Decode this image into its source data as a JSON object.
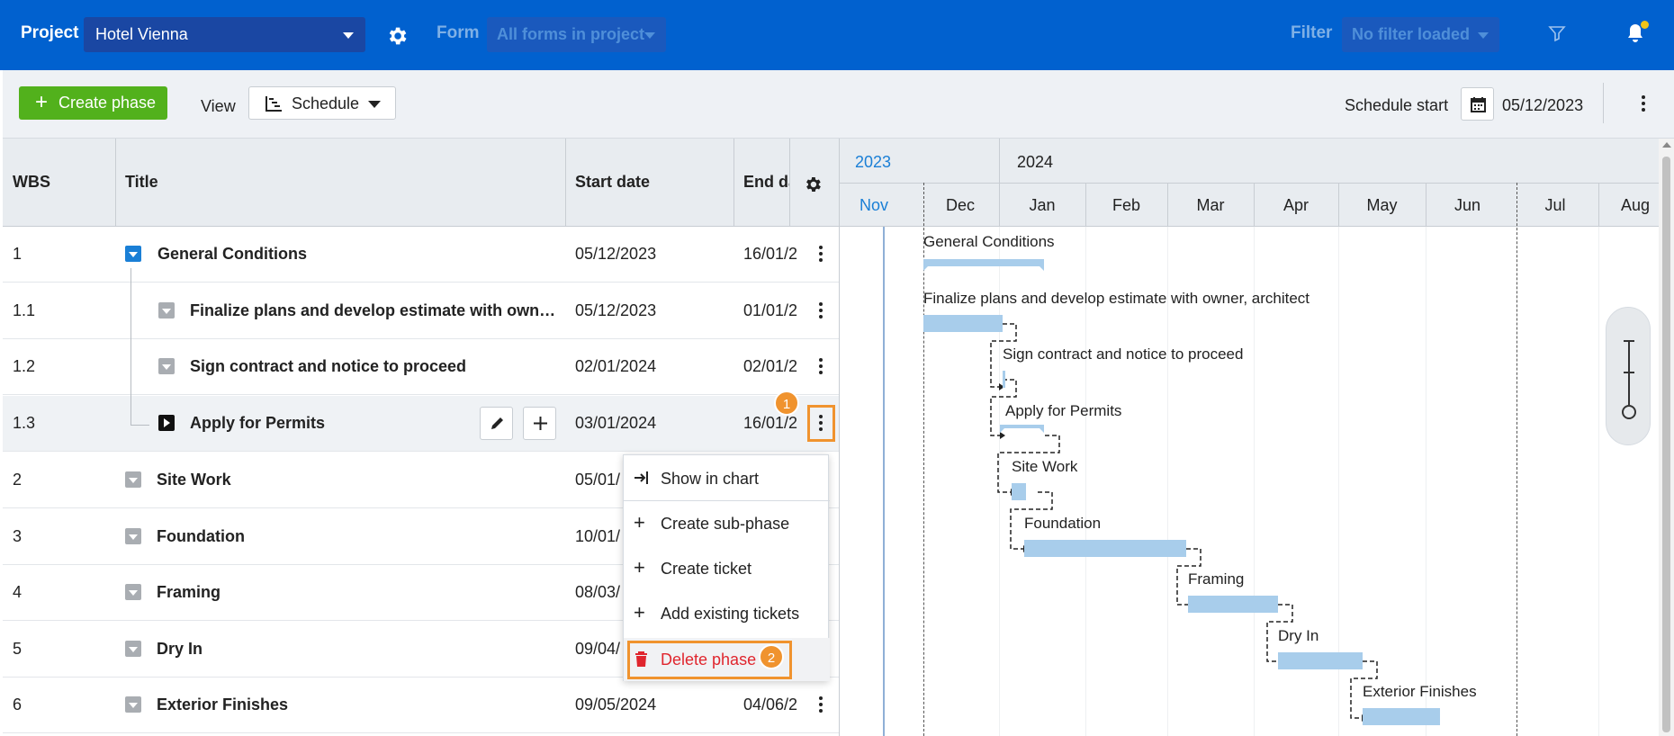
{
  "topbar": {
    "project_label": "Project",
    "project_value": "Hotel Vienna",
    "form_label": "Form",
    "form_value": "All forms in project",
    "filter_label": "Filter",
    "filter_value": "No filter loaded"
  },
  "toolbar": {
    "create_phase": "Create phase",
    "view_label": "View",
    "view_value": "Schedule",
    "schedule_start_label": "Schedule start",
    "schedule_start_value": "05/12/2023"
  },
  "table": {
    "columns": [
      "WBS",
      "Title",
      "Start date",
      "End da"
    ],
    "rows": [
      {
        "wbs": "1",
        "title": "General Conditions",
        "start": "05/12/2023",
        "end": "16/01/2"
      },
      {
        "wbs": "1.1",
        "title": "Finalize plans and develop estimate with owner, arc...",
        "start": "05/12/2023",
        "end": "01/01/2"
      },
      {
        "wbs": "1.2",
        "title": "Sign contract and notice to proceed",
        "start": "02/01/2024",
        "end": "02/01/2"
      },
      {
        "wbs": "1.3",
        "title": "Apply for Permits",
        "start": "03/01/2024",
        "end": "16/01/2"
      },
      {
        "wbs": "2",
        "title": "Site Work",
        "start": "05/01/",
        "end": ""
      },
      {
        "wbs": "3",
        "title": "Foundation",
        "start": "10/01/",
        "end": ""
      },
      {
        "wbs": "4",
        "title": "Framing",
        "start": "08/03/",
        "end": ""
      },
      {
        "wbs": "5",
        "title": "Dry In",
        "start": "09/04/",
        "end": ""
      },
      {
        "wbs": "6",
        "title": "Exterior Finishes",
        "start": "09/05/2024",
        "end": "04/06/2"
      }
    ]
  },
  "context_menu": {
    "items": [
      "Show in chart",
      "Create sub-phase",
      "Create ticket",
      "Add existing tickets",
      "Delete phase"
    ]
  },
  "badges": {
    "one": "1",
    "two": "2"
  },
  "gantt": {
    "years": [
      "2023",
      "2024"
    ],
    "months": [
      "Nov",
      "Dec",
      "Jan",
      "Feb",
      "Mar",
      "Apr",
      "May",
      "Jun",
      "Jul",
      "Aug"
    ],
    "labels": [
      "General Conditions",
      "Finalize plans and develop estimate with owner, architect",
      "Sign contract and notice to proceed",
      "Apply for Permits",
      "Site Work",
      "Foundation",
      "Framing",
      "Dry In",
      "Exterior Finishes"
    ]
  },
  "colors": {
    "topbar": "#0161cf",
    "create_button": "#52b11c",
    "bar": "#a8cdeb",
    "highlight": "#f0932e",
    "delete": "#e0262e"
  }
}
